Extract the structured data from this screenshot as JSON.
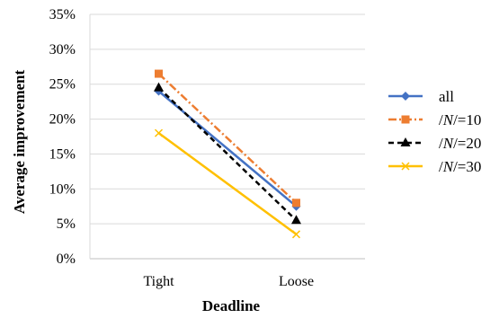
{
  "chart_data": {
    "type": "line",
    "xlabel": "Deadline",
    "ylabel": "Average improvement",
    "categories": [
      "Tight",
      "Loose"
    ],
    "ylim": [
      0,
      35
    ],
    "yticks": [
      "0%",
      "5%",
      "10%",
      "15%",
      "20%",
      "25%",
      "30%",
      "35%"
    ],
    "grid": "horizontal",
    "legend_position": "right",
    "series": [
      {
        "name": "all",
        "values": [
          24,
          7.5
        ],
        "color": "#4472C4",
        "dash": "solid",
        "marker": "diamond"
      },
      {
        "name": "/N/=10",
        "values": [
          26.5,
          8
        ],
        "color": "#ED7D31",
        "dash": "dashdot",
        "marker": "square"
      },
      {
        "name": "/N/=20",
        "values": [
          24.5,
          5.5
        ],
        "color": "#000000",
        "dash": "dash",
        "marker": "triangle"
      },
      {
        "name": "/N/=30",
        "values": [
          18,
          3.5
        ],
        "color": "#FFC000",
        "dash": "solid",
        "marker": "x"
      }
    ]
  }
}
